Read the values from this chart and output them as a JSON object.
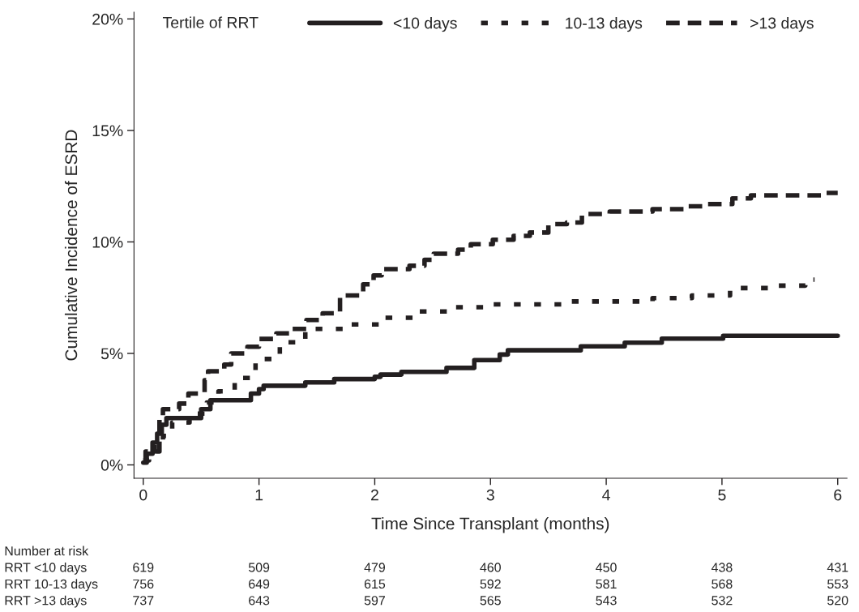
{
  "chart_data": {
    "type": "step",
    "xlabel": "Time Since Transplant (months)",
    "ylabel": "Cumulative Incidence of ESRD",
    "legend_title": "Tertile of RRT",
    "xlim": [
      -0.08,
      6.08
    ],
    "ylim": [
      -0.6,
      20.3
    ],
    "xticks": [
      0,
      1,
      2,
      3,
      4,
      5,
      6
    ],
    "yticks": [
      {
        "value": 0,
        "label": "0%"
      },
      {
        "value": 5,
        "label": "5%"
      },
      {
        "value": 10,
        "label": "10%"
      },
      {
        "value": 15,
        "label": "15%"
      },
      {
        "value": 20,
        "label": "20%"
      }
    ],
    "grid": false,
    "legend": "top",
    "marker": "none",
    "series": [
      {
        "name": "<10 days",
        "color": "#231f20",
        "line_style": "solid",
        "x": [
          0,
          0.03,
          0.08,
          0.12,
          0.16,
          0.2,
          0.45,
          0.5,
          0.58,
          0.88,
          0.93,
          1.0,
          1.04,
          1.38,
          1.4,
          1.65,
          2.0,
          2.05,
          2.23,
          2.62,
          2.86,
          3.08,
          3.15,
          3.78,
          4.16,
          4.48,
          5.01,
          6.0
        ],
        "values": [
          0.1,
          0.5,
          1.0,
          1.4,
          1.8,
          2.1,
          2.1,
          2.5,
          2.9,
          2.9,
          3.2,
          3.4,
          3.55,
          3.55,
          3.7,
          3.85,
          3.95,
          4.05,
          4.17,
          4.35,
          4.7,
          4.95,
          5.14,
          5.32,
          5.48,
          5.66,
          5.79,
          5.79
        ]
      },
      {
        "name": "10-13 days",
        "color": "#231f20",
        "line_style": "dotted",
        "x": [
          0,
          0.05,
          0.1,
          0.17,
          0.25,
          0.4,
          0.55,
          0.65,
          0.79,
          0.97,
          1.18,
          1.4,
          1.75,
          2.05,
          2.34,
          2.65,
          2.98,
          3.36,
          3.69,
          4.06,
          4.4,
          4.74,
          5.07,
          5.4,
          5.72,
          5.8
        ],
        "values": [
          0.2,
          0.6,
          0.9,
          1.3,
          1.9,
          2.3,
          2.8,
          3.3,
          3.9,
          4.75,
          5.5,
          6.1,
          6.3,
          6.6,
          6.88,
          7.07,
          7.2,
          7.2,
          7.33,
          7.33,
          7.48,
          7.6,
          7.93,
          8.04,
          8.31,
          8.31
        ]
      },
      {
        "name": ">13 days",
        "color": "#231f20",
        "line_style": "dashed",
        "x": [
          0,
          0.02,
          0.14,
          0.17,
          0.31,
          0.39,
          0.53,
          0.56,
          0.7,
          0.76,
          0.9,
          1.0,
          1.15,
          1.27,
          1.41,
          1.55,
          1.7,
          1.9,
          1.99,
          2.06,
          2.3,
          2.43,
          2.51,
          2.72,
          2.83,
          3.02,
          3.2,
          3.34,
          3.5,
          3.66,
          3.79,
          4.03,
          4.4,
          4.7,
          4.83,
          5.09,
          5.25,
          5.89,
          6.0
        ],
        "values": [
          0.2,
          0.6,
          2.2,
          2.5,
          2.75,
          3.2,
          3.8,
          4.2,
          4.5,
          5.0,
          5.3,
          5.65,
          5.9,
          6.1,
          6.5,
          6.8,
          7.6,
          8.1,
          8.5,
          8.78,
          8.93,
          9.2,
          9.47,
          9.65,
          9.9,
          10.1,
          10.27,
          10.42,
          10.8,
          10.87,
          11.25,
          11.36,
          11.47,
          11.6,
          11.7,
          11.95,
          12.09,
          12.2,
          12.2
        ]
      }
    ],
    "annotations": [
      "Number at risk",
      "RRT <10 days",
      "619",
      "509",
      "479",
      "460",
      "450",
      "438",
      "431",
      "RRT 10-13 days",
      "756",
      "649",
      "615",
      "592",
      "581",
      "568",
      "553",
      "RRT >13 days",
      "737",
      "643",
      "597",
      "565",
      "543",
      "532",
      "520"
    ]
  }
}
